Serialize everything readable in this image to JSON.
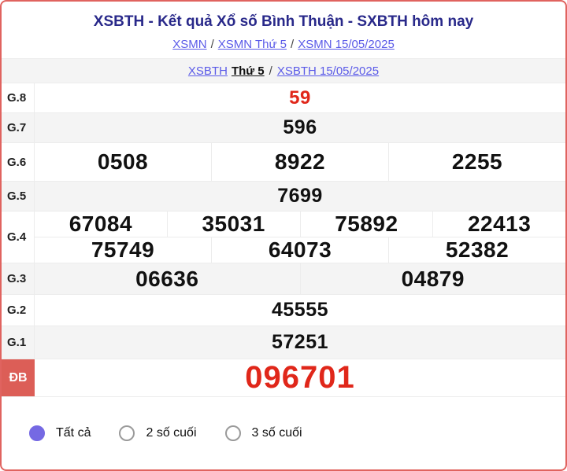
{
  "colors": {
    "card_border": "#e0635f",
    "title": "#29298a",
    "link": "#5a5ae8",
    "red_value": "#e0271a",
    "db_label_bg": "#dc5e57",
    "radio_selected": "#7569e3",
    "row_alt_bg": "#f4f4f4",
    "divider": "#ececec"
  },
  "header": {
    "title": "XSBTH - Kết quả Xổ số Bình Thuận - SXBTH hôm nay",
    "breadcrumb1": {
      "link_xsmn": "XSMN",
      "sep1": "/",
      "link_xsmn_thu5": "XSMN Thứ 5",
      "sep2": "/",
      "link_xsmn_date": "XSMN 15/05/2025"
    },
    "breadcrumb2": {
      "link_xsbth": "XSBTH",
      "current": "Thứ 5",
      "sep": "/",
      "link_xsbth_date": "XSBTH 15/05/2025"
    }
  },
  "table": {
    "g8": {
      "label": "G.8",
      "value": "59"
    },
    "g7": {
      "label": "G.7",
      "value": "596"
    },
    "g6": {
      "label": "G.6",
      "values": [
        "0508",
        "8922",
        "2255"
      ]
    },
    "g5": {
      "label": "G.5",
      "value": "7699"
    },
    "g4": {
      "label": "G.4",
      "line1": [
        "67084",
        "35031",
        "75892",
        "22413"
      ],
      "line2": [
        "75749",
        "64073",
        "52382"
      ]
    },
    "g3": {
      "label": "G.3",
      "values": [
        "06636",
        "04879"
      ]
    },
    "g2": {
      "label": "G.2",
      "value": "45555"
    },
    "g1": {
      "label": "G.1",
      "value": "57251"
    },
    "db": {
      "label": "ĐB",
      "value": "096701"
    }
  },
  "filters": {
    "options": [
      {
        "label": "Tất cả",
        "selected": true
      },
      {
        "label": "2 số cuối",
        "selected": false
      },
      {
        "label": "3 số cuối",
        "selected": false
      }
    ]
  }
}
